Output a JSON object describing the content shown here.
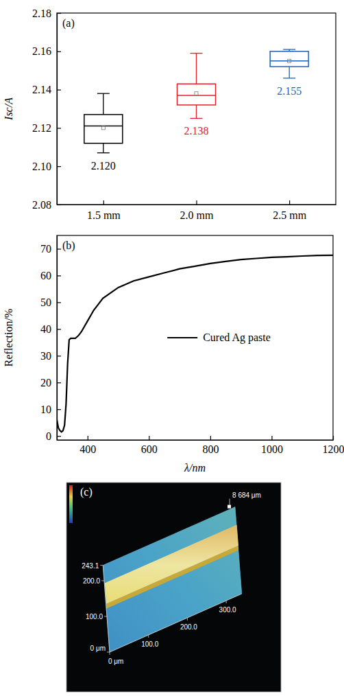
{
  "chart_data": [
    {
      "type": "box",
      "title": "(a)",
      "ylabel": "Isc/A",
      "categories": [
        "1.5 mm",
        "2.0 mm",
        "2.5 mm"
      ],
      "min": [
        2.107,
        2.125,
        2.146
      ],
      "q1": [
        2.112,
        2.132,
        2.152
      ],
      "median": [
        2.121,
        2.137,
        2.155
      ],
      "q3": [
        2.127,
        2.143,
        2.16
      ],
      "max": [
        2.138,
        2.159,
        2.161
      ],
      "values": [
        2.12,
        2.138,
        2.155
      ],
      "value_labels": [
        "2.120",
        "2.138",
        "2.155"
      ],
      "data_labels": true,
      "colors": [
        "#000000",
        "#e3202a",
        "#1f63b4"
      ],
      "ylim": [
        2.08,
        2.18
      ],
      "yticks": [
        2.08,
        {
          "value": 2.1,
          "label": "2.10"
        },
        2.12,
        2.14,
        2.16,
        2.18
      ]
    },
    {
      "type": "line",
      "title": "(b)",
      "xlabel": "λ/nm",
      "ylabel": "Reflection/%",
      "x": [
        300,
        305,
        310,
        315,
        320,
        325,
        330,
        335,
        340,
        345,
        350,
        360,
        370,
        380,
        400,
        420,
        450,
        500,
        550,
        600,
        650,
        700,
        750,
        800,
        850,
        900,
        950,
        1000,
        1050,
        1100,
        1150,
        1200
      ],
      "series": [
        {
          "name": "Cured Ag paste",
          "color": "#000000",
          "values": [
            6,
            3,
            2,
            1.5,
            2,
            4,
            12,
            27,
            36,
            36.5,
            36.5,
            36.5,
            37.5,
            39,
            43,
            47,
            51.5,
            55.5,
            58,
            59.5,
            61,
            62.5,
            63.5,
            64.5,
            65.3,
            66,
            66.4,
            66.8,
            67,
            67.3,
            67.5,
            67.6
          ]
        }
      ],
      "xlim": [
        300,
        1200
      ],
      "xticks": [
        400,
        600,
        800,
        1000,
        1200
      ],
      "ylim": [
        -1.5,
        75
      ],
      "yticks": [
        0,
        10,
        20,
        30,
        40,
        50,
        60,
        70
      ],
      "legend": "right"
    },
    {
      "type": "surface_image",
      "title": "(c)",
      "annotation": "8 684 μm",
      "xlim": [
        0,
        340
      ],
      "xticks": [
        {
          "value": 0,
          "label": "0 μm"
        },
        {
          "value": 100,
          "label": "100.0"
        },
        {
          "value": 200,
          "label": "200.0"
        },
        {
          "value": 300,
          "label": "300.0"
        }
      ],
      "ylim": [
        0,
        243.1
      ],
      "yticks": [
        {
          "value": 0,
          "label": "0 μm"
        },
        {
          "value": 100,
          "label": "100.0"
        },
        {
          "value": 200,
          "label": "200.0"
        },
        243.1
      ]
    }
  ]
}
